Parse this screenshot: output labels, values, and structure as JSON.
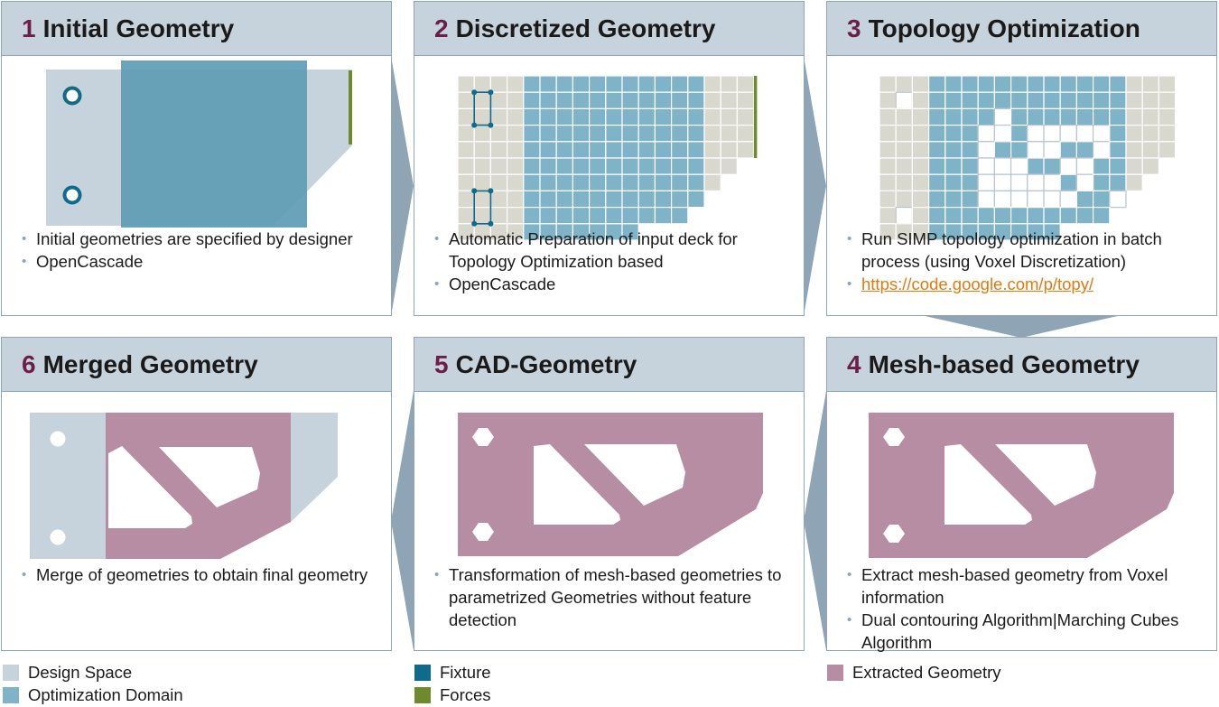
{
  "colors": {
    "design_space": "#c7d3dc",
    "optimization_domain": "#7fb3c8",
    "fixture": "#0e6b8c",
    "forces": "#6e8a2c",
    "extracted_geometry": "#b68da3",
    "number": "#6b1f48",
    "link": "#e07a10"
  },
  "panels": [
    {
      "num": "1",
      "title": "Initial Geometry",
      "bullets": [
        "Initial geometries are specified by designer",
        "OpenCascade"
      ]
    },
    {
      "num": "2",
      "title": "Discretized Geometry",
      "bullets": [
        "Automatic Preparation of input deck for Topology Optimization based",
        "OpenCascade"
      ]
    },
    {
      "num": "3",
      "title": "Topology Optimization",
      "bullets": [
        "Run SIMP topology optimization in batch process (using Voxel Discretization)"
      ],
      "link": "https://code.google.com/p/topy/"
    },
    {
      "num": "4",
      "title": "Mesh-based Geometry",
      "bullets": [
        "Extract mesh-based geometry from Voxel information",
        "Dual contouring Algorithm|Marching Cubes Algorithm"
      ]
    },
    {
      "num": "5",
      "title": "CAD-Geometry",
      "bullets": [
        "Transformation of mesh-based geometries to parametrized Geometries without feature detection"
      ]
    },
    {
      "num": "6",
      "title": "Merged Geometry",
      "bullets": [
        "Merge of geometries to obtain final geometry"
      ]
    }
  ],
  "legend": {
    "design_space": "Design Space",
    "optimization_domain": "Optimization Domain",
    "fixture": "Fixture",
    "forces": "Forces",
    "extracted_geometry": "Extracted Geometry"
  }
}
